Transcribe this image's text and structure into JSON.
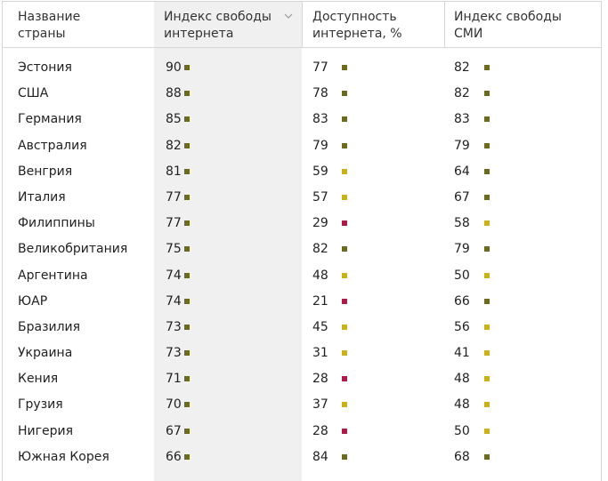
{
  "colors": {
    "high": "#6b6b1e",
    "mid": "#c9b11a",
    "low": "#b01a48"
  },
  "header": {
    "country": [
      "Название",
      "страны"
    ],
    "internet_freedom": [
      "Индекс свободы",
      "интернета"
    ],
    "internet_access": [
      "Доступность",
      "интернета, %"
    ],
    "press_freedom": [
      "Индекс свободы",
      "СМИ"
    ],
    "sort_icon": "chevron-down-icon"
  },
  "rows": [
    {
      "country": "Эстония",
      "freedom": "90",
      "fc": "high",
      "access": "77",
      "ac": "high",
      "press": "82",
      "pc": "high"
    },
    {
      "country": "США",
      "freedom": "88",
      "fc": "high",
      "access": "78",
      "ac": "high",
      "press": "82",
      "pc": "high"
    },
    {
      "country": "Германия",
      "freedom": "85",
      "fc": "high",
      "access": "83",
      "ac": "high",
      "press": "83",
      "pc": "high"
    },
    {
      "country": "Австралия",
      "freedom": "82",
      "fc": "high",
      "access": "79",
      "ac": "high",
      "press": "79",
      "pc": "high"
    },
    {
      "country": "Венгрия",
      "freedom": "81",
      "fc": "high",
      "access": "59",
      "ac": "mid",
      "press": "64",
      "pc": "high"
    },
    {
      "country": "Италия",
      "freedom": "77",
      "fc": "high",
      "access": "57",
      "ac": "mid",
      "press": "67",
      "pc": "high"
    },
    {
      "country": "Филиппины",
      "freedom": "77",
      "fc": "high",
      "access": "29",
      "ac": "low",
      "press": "58",
      "pc": "mid"
    },
    {
      "country": "Великобритания",
      "freedom": "75",
      "fc": "high",
      "access": "82",
      "ac": "high",
      "press": "79",
      "pc": "high"
    },
    {
      "country": "Аргентина",
      "freedom": "74",
      "fc": "high",
      "access": "48",
      "ac": "mid",
      "press": "50",
      "pc": "mid"
    },
    {
      "country": "ЮАР",
      "freedom": "74",
      "fc": "high",
      "access": "21",
      "ac": "low",
      "press": "66",
      "pc": "high"
    },
    {
      "country": "Бразилия",
      "freedom": "73",
      "fc": "high",
      "access": "45",
      "ac": "mid",
      "press": "56",
      "pc": "mid"
    },
    {
      "country": "Украина",
      "freedom": "73",
      "fc": "high",
      "access": "31",
      "ac": "mid",
      "press": "41",
      "pc": "mid"
    },
    {
      "country": "Кения",
      "freedom": "71",
      "fc": "high",
      "access": "28",
      "ac": "low",
      "press": "48",
      "pc": "mid"
    },
    {
      "country": "Грузия",
      "freedom": "70",
      "fc": "high",
      "access": "37",
      "ac": "mid",
      "press": "48",
      "pc": "mid"
    },
    {
      "country": "Нигерия",
      "freedom": "67",
      "fc": "high",
      "access": "28",
      "ac": "low",
      "press": "50",
      "pc": "mid"
    },
    {
      "country": "Южная Корея",
      "freedom": "66",
      "fc": "high",
      "access": "84",
      "ac": "high",
      "press": "68",
      "pc": "high"
    }
  ]
}
